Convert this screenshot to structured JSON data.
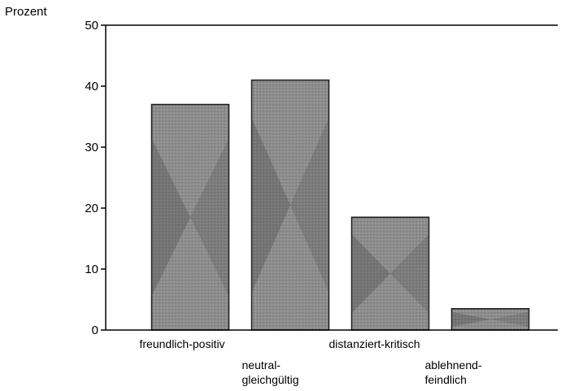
{
  "chart_data": {
    "type": "bar",
    "ylabel": "Prozent",
    "categories": [
      [
        "freundlich-positiv"
      ],
      [
        "neutral-",
        "gleichgültig"
      ],
      [
        "distanziert-kritisch"
      ],
      [
        "ablehnend-",
        "feindlich"
      ]
    ],
    "values": [
      37,
      41,
      18.5,
      3.5
    ],
    "ylim": [
      0,
      50
    ],
    "yticks": [
      0,
      10,
      20,
      30,
      40,
      50
    ],
    "grid": false,
    "colors": {
      "bar_fill": "#8f8f8f",
      "bar_pattern_dark": "#4a4a4a",
      "bar_edge": "#1a1a1a",
      "axis": "#000000"
    }
  }
}
